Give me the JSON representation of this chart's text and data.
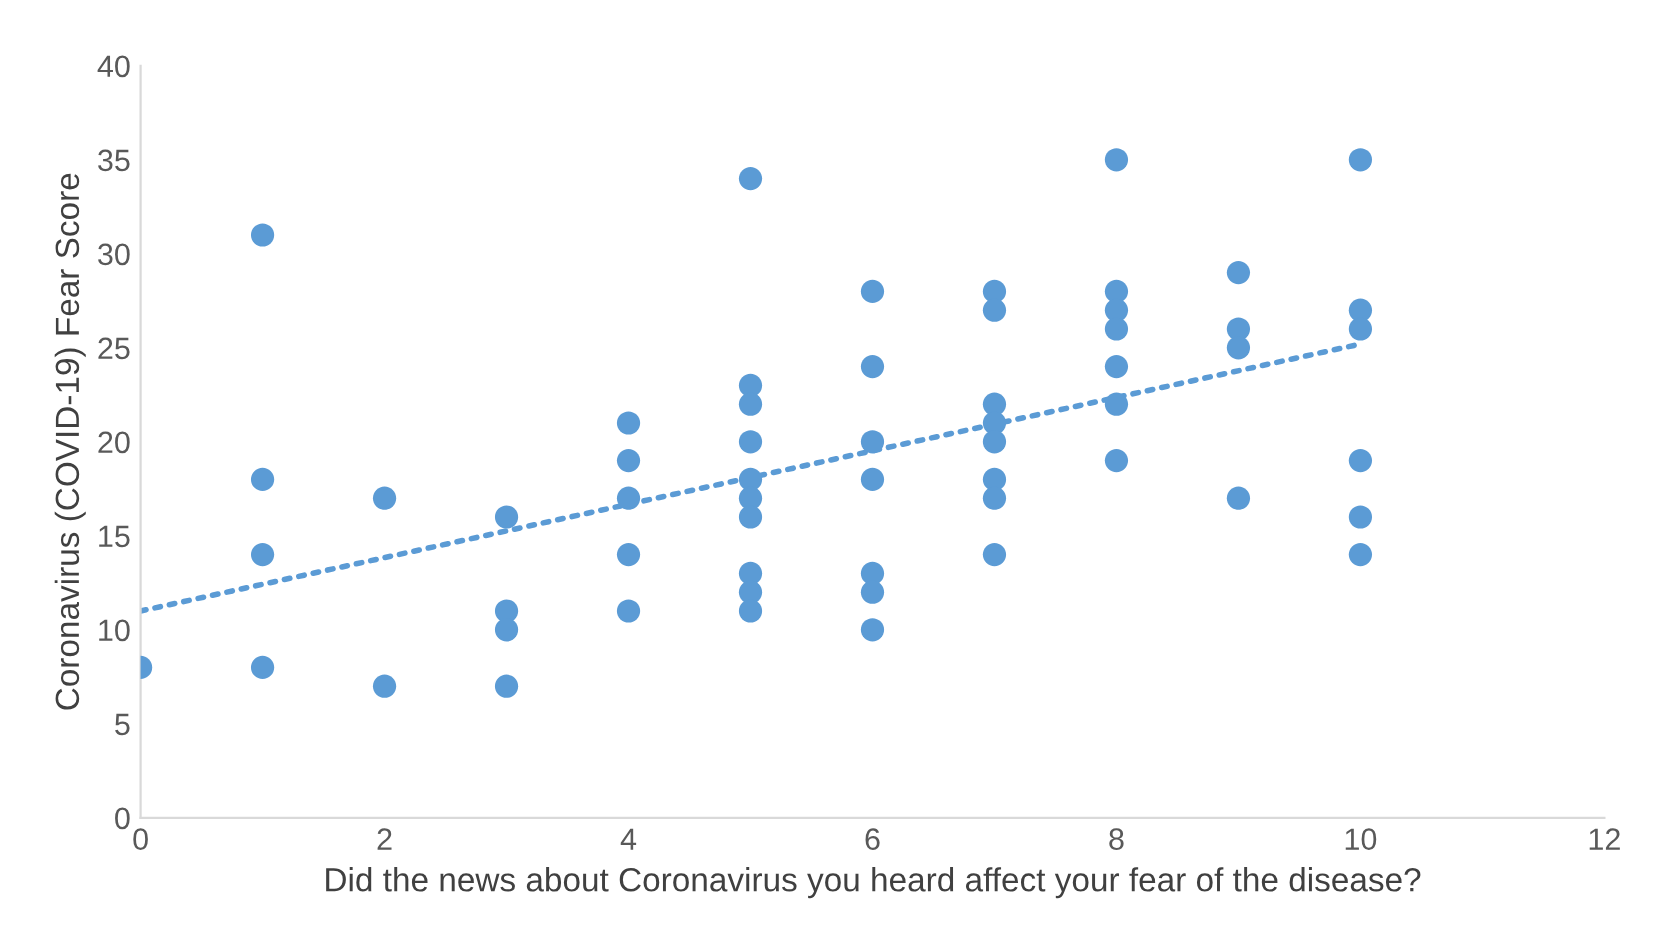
{
  "chart_data": {
    "type": "scatter",
    "xlabel": "Did the news about Coronavirus you heard affect your fear of the disease?",
    "ylabel": "Coronavirus (COVID-19) Fear Score",
    "xlim": [
      0,
      12
    ],
    "xticks": [
      0,
      2,
      4,
      6,
      8,
      10,
      12
    ],
    "ylim": [
      0,
      40
    ],
    "yticks": [
      0,
      5,
      10,
      15,
      20,
      25,
      30,
      35,
      40
    ],
    "grid": false,
    "legend": false,
    "series": [
      {
        "color": "#5b9bd5",
        "marker": "circle",
        "x": [
          0,
          1,
          1,
          1,
          1,
          2,
          2,
          3,
          3,
          3,
          3,
          4,
          4,
          4,
          4,
          4,
          5,
          5,
          5,
          5,
          5,
          5,
          5,
          5,
          5,
          5,
          6,
          6,
          6,
          6,
          6,
          6,
          6,
          7,
          7,
          7,
          7,
          7,
          7,
          7,
          7,
          8,
          8,
          8,
          8,
          8,
          8,
          8,
          9,
          9,
          9,
          9,
          10,
          10,
          10,
          10,
          10,
          10
        ],
        "values": [
          8,
          31,
          18,
          14,
          8,
          17,
          7,
          16,
          11,
          10,
          7,
          21,
          19,
          17,
          14,
          11,
          34,
          23,
          22,
          20,
          18,
          17,
          16,
          13,
          12,
          11,
          28,
          24,
          20,
          18,
          13,
          12,
          10,
          28,
          27,
          22,
          21,
          20,
          18,
          17,
          14,
          35,
          28,
          27,
          26,
          24,
          22,
          19,
          29,
          26,
          25,
          17,
          35,
          27,
          26,
          19,
          16,
          14
        ]
      },
      {
        "type": "line",
        "color": "#5b9bd5",
        "marker": "none",
        "line_style": "dotted",
        "x": [
          0,
          10
        ],
        "values": [
          11,
          25.2
        ]
      }
    ]
  }
}
